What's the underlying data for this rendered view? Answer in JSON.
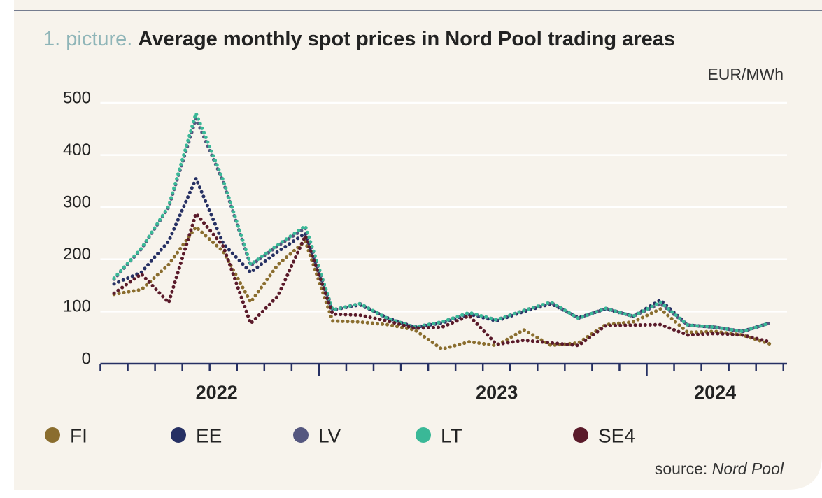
{
  "chart_data": {
    "type": "line",
    "title_prefix": "1. picture.",
    "title": "Average monthly spot prices in Nord Pool trading areas",
    "unit": "EUR/MWh",
    "source_label": "source:",
    "source": "Nord Pool",
    "categories": [
      null,
      null,
      null,
      null,
      null,
      null,
      null,
      null,
      null,
      null,
      null,
      null,
      null,
      null,
      null,
      null,
      null,
      null,
      null,
      null,
      null,
      null,
      null,
      null,
      null
    ],
    "x_groups": [
      {
        "label": "2022",
        "months": 8
      },
      {
        "label": "2023",
        "months": 12
      },
      {
        "label": "2024",
        "months": 5
      }
    ],
    "ylim": [
      0,
      500
    ],
    "yticks": [
      0,
      100,
      200,
      300,
      400,
      500
    ],
    "grid": true,
    "series": [
      {
        "name": "FI",
        "color": "#8a6d2e",
        "values": [
          133,
          142,
          190,
          262,
          215,
          118,
          190,
          235,
          82,
          80,
          75,
          65,
          28,
          42,
          35,
          65,
          35,
          40,
          75,
          80,
          105,
          60,
          62,
          55,
          38
        ]
      },
      {
        "name": "EE",
        "color": "#263063",
        "values": [
          153,
          175,
          235,
          355,
          230,
          175,
          215,
          250,
          103,
          113,
          88,
          70,
          78,
          95,
          82,
          100,
          115,
          88,
          105,
          91,
          122,
          74,
          70,
          62,
          78
        ]
      },
      {
        "name": "LV",
        "color": "#55577f",
        "values": [
          162,
          220,
          300,
          470,
          348,
          188,
          226,
          260,
          103,
          115,
          87,
          70,
          80,
          97,
          84,
          102,
          117,
          87,
          106,
          91,
          115,
          74,
          70,
          62,
          78
        ]
      },
      {
        "name": "LT",
        "color": "#3ab897",
        "values": [
          164,
          221,
          302,
          480,
          351,
          190,
          228,
          264,
          103,
          115,
          87,
          70,
          80,
          98,
          84,
          102,
          118,
          87,
          106,
          91,
          118,
          74,
          70,
          62,
          78
        ]
      },
      {
        "name": "SE4",
        "color": "#5a1a2a",
        "values": [
          135,
          172,
          117,
          288,
          225,
          77,
          130,
          245,
          95,
          93,
          82,
          68,
          70,
          92,
          37,
          45,
          40,
          35,
          73,
          74,
          75,
          55,
          58,
          55,
          42
        ]
      }
    ]
  }
}
